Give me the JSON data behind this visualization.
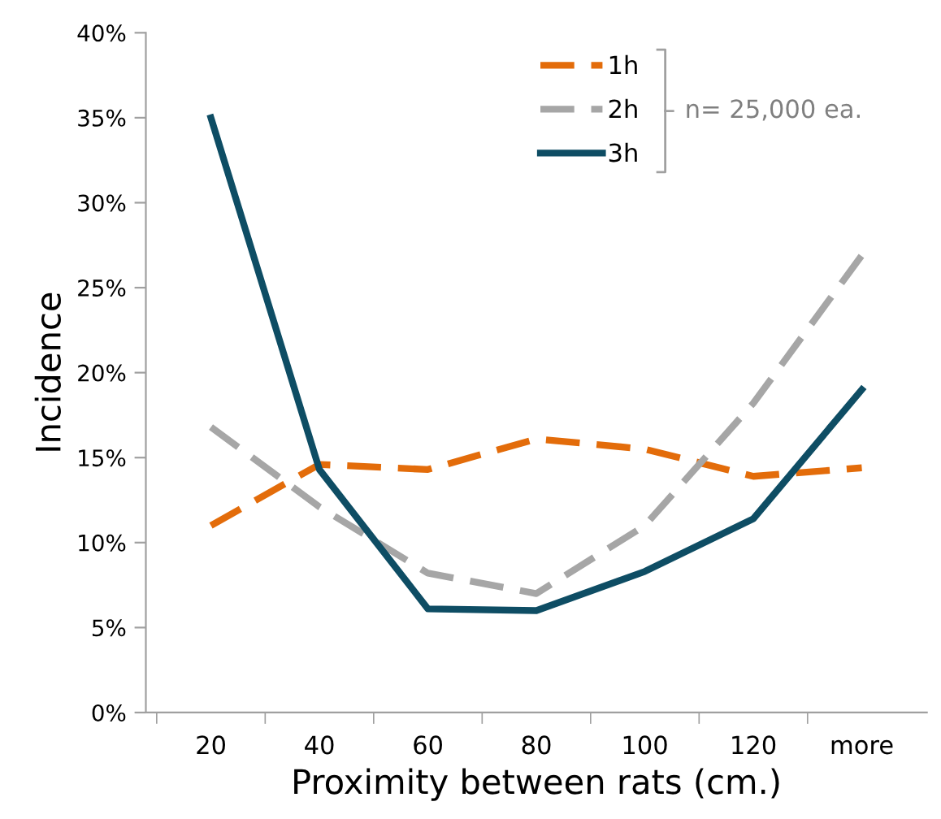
{
  "chart_data": {
    "type": "line",
    "xlabel": "Proximity between rats (cm.)",
    "ylabel": "Incidence",
    "categories": [
      "20",
      "40",
      "60",
      "80",
      "100",
      "120",
      "more"
    ],
    "series": [
      {
        "name": "1h",
        "color": "#e36c0a",
        "line_style": "dashed",
        "values": [
          11.0,
          14.6,
          14.3,
          16.1,
          15.5,
          13.9,
          14.4
        ]
      },
      {
        "name": "2h",
        "color": "#a6a6a6",
        "line_style": "dashed",
        "values": [
          16.8,
          12.1,
          8.2,
          7.0,
          11.0,
          18.2,
          26.9
        ]
      },
      {
        "name": "3h",
        "color": "#0e4d64",
        "line_style": "solid",
        "values": [
          35.0,
          14.3,
          6.1,
          6.0,
          8.3,
          11.4,
          19.0
        ]
      }
    ],
    "ylim": [
      0,
      40
    ],
    "yticks": [
      {
        "value": 0,
        "label": "0%"
      },
      {
        "value": 5,
        "label": "5%"
      },
      {
        "value": 10,
        "label": "10%"
      },
      {
        "value": 15,
        "label": "15%"
      },
      {
        "value": 20,
        "label": "20%"
      },
      {
        "value": 25,
        "label": "25%"
      },
      {
        "value": 30,
        "label": "30%"
      },
      {
        "value": 35,
        "label": "35%"
      },
      {
        "value": 40,
        "label": "40%"
      }
    ],
    "grid": false,
    "legend": "top right",
    "marker": "none",
    "annotations": [
      "n= 25,000 ea."
    ]
  }
}
